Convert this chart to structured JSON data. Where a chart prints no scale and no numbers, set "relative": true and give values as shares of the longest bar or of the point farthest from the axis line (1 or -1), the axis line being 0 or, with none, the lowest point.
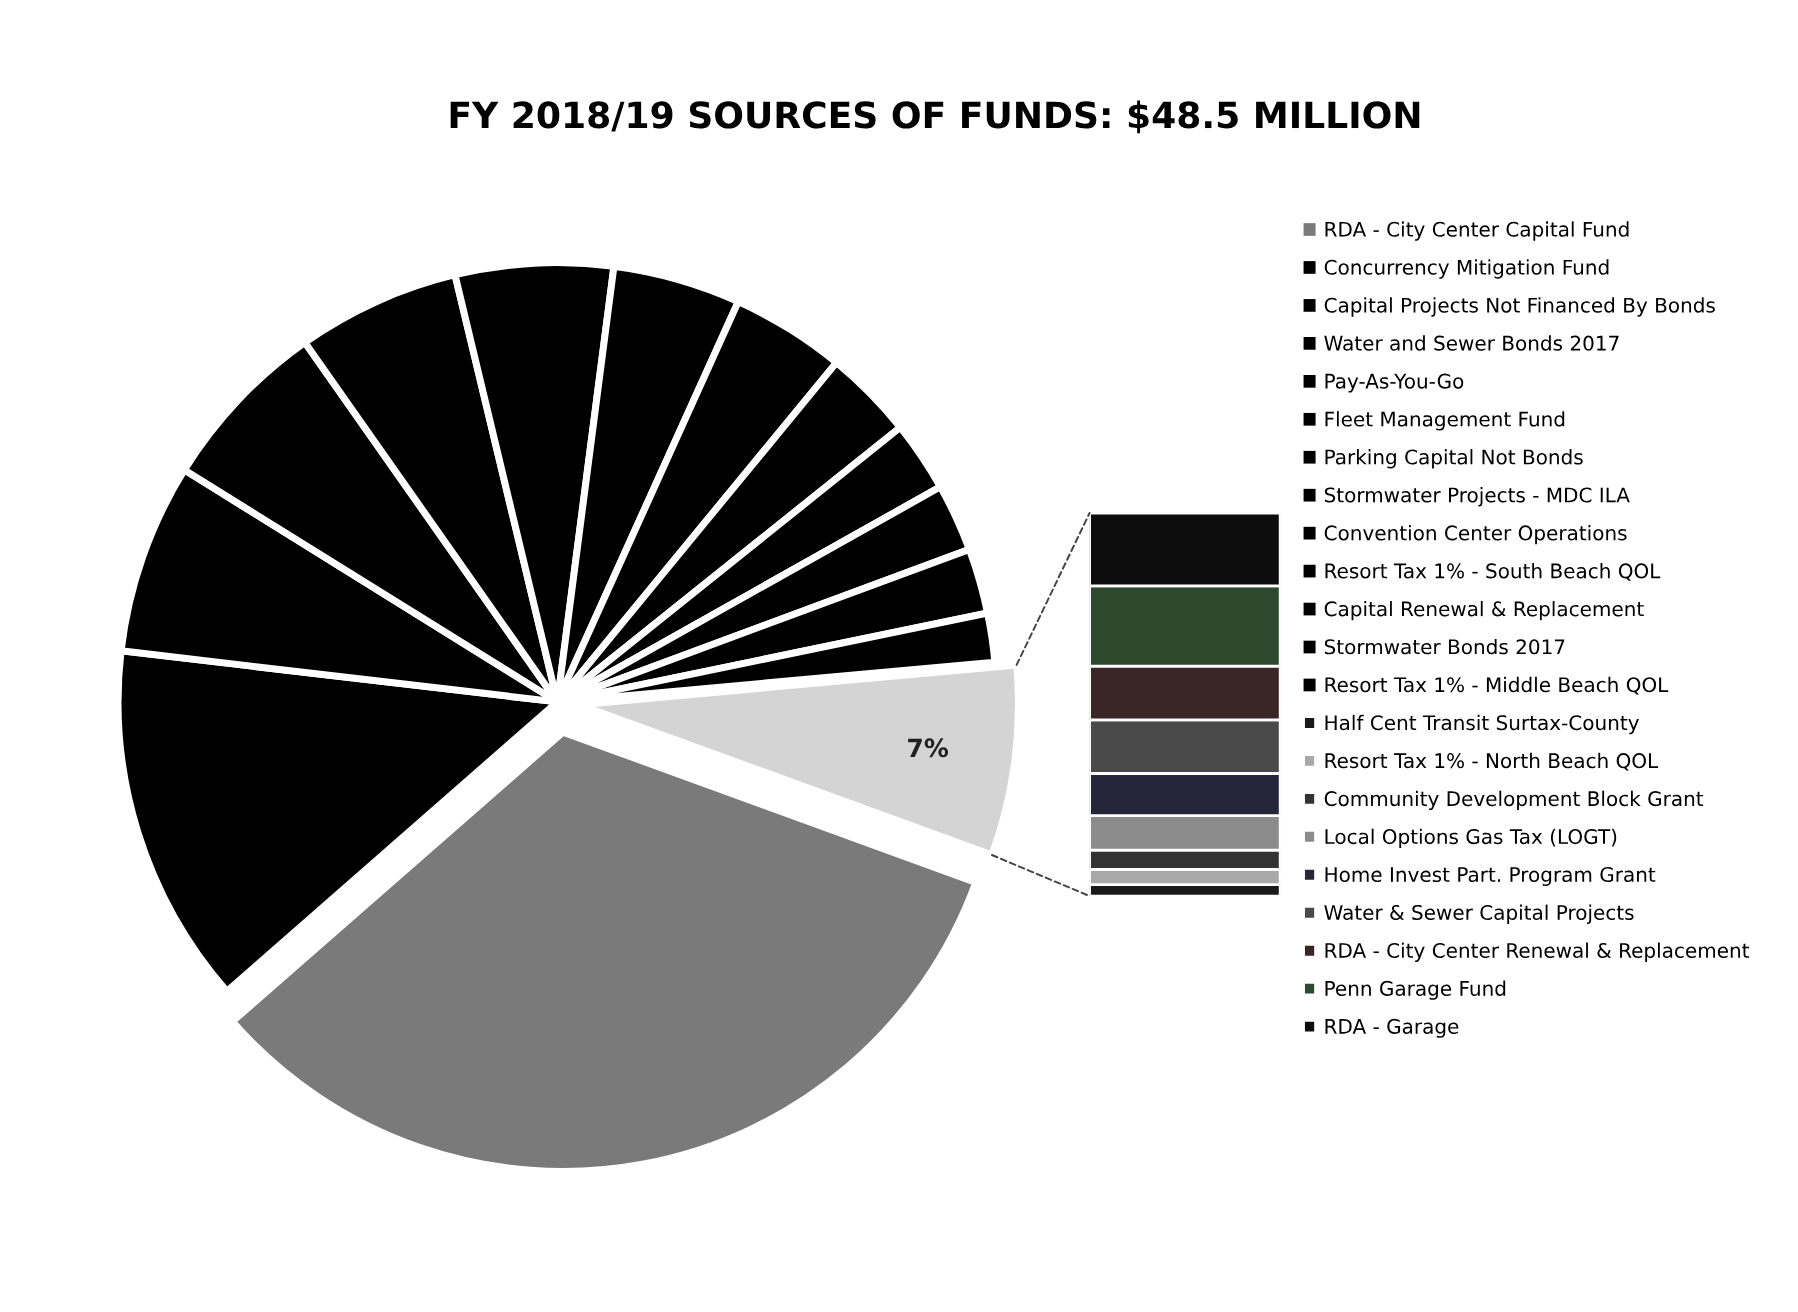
{
  "chart_data": [
    {
      "type": "pie",
      "title": "FY 2018/19 SOURCES OF FUNDS: $48.5 MILLION",
      "legend": "right",
      "categories": [
        "RDA - City Center Capital Fund",
        "Concurrency Mitigation Fund",
        "Capital Projects Not Financed By Bonds",
        "Water and Sewer Bonds 2017",
        "Pay-As-You-Go",
        "Fleet Management Fund",
        "Parking Capital Not Bonds",
        "Stormwater Projects - MDC ILA",
        "Convention Center Operations",
        "Resort Tax 1% - South Beach QOL",
        "Capital Renewal & Replacement",
        "Stormwater Bonds 2017",
        "Resort Tax 1% - Middle Beach QOL",
        null
      ],
      "values": [
        33,
        13.3,
        7.0,
        6.4,
        6.0,
        5.8,
        4.7,
        4.2,
        3.3,
        2.6,
        2.5,
        2.4,
        1.8,
        7
      ],
      "colors": [
        "#7a7a7a",
        "#000000",
        "#000000",
        "#000000",
        "#000000",
        "#000000",
        "#000000",
        "#000000",
        "#000000",
        "#000000",
        "#000000",
        "#000000",
        "#000000",
        "#d4d4d4"
      ],
      "value_labels": [
        null,
        null,
        null,
        null,
        null,
        null,
        null,
        null,
        null,
        null,
        null,
        null,
        null,
        "7%"
      ]
    },
    {
      "type": "bar",
      "stacked": true,
      "relative": true,
      "legend": "right",
      "categories": [
        null
      ],
      "series": [
        {
          "name": "Half Cent Transit Surtax-County",
          "color": "#1a1a1a",
          "values": [
            0.03
          ]
        },
        {
          "name": "Resort Tax 1% - North Beach QOL",
          "color": "#a8a8a8",
          "values": [
            0.04
          ]
        },
        {
          "name": "Community Development Block Grant",
          "color": "#333333",
          "values": [
            0.05
          ]
        },
        {
          "name": "Local Options Gas Tax (LOGT)",
          "color": "#8c8c8c",
          "values": [
            0.09
          ]
        },
        {
          "name": "Home Invest Part. Program Grant",
          "color": "#26263a",
          "values": [
            0.11
          ]
        },
        {
          "name": "Water & Sewer Capital Projects",
          "color": "#4a4a4a",
          "values": [
            0.14
          ]
        },
        {
          "name": "RDA - City Center Renewal & Replacement",
          "color": "#3a2626",
          "values": [
            0.14
          ]
        },
        {
          "name": "Penn Garage Fund",
          "color": "#2e4a2e",
          "values": [
            0.21
          ]
        },
        {
          "name": "RDA - Garage",
          "color": "#0d0d0d",
          "values": [
            0.19
          ]
        }
      ]
    }
  ]
}
